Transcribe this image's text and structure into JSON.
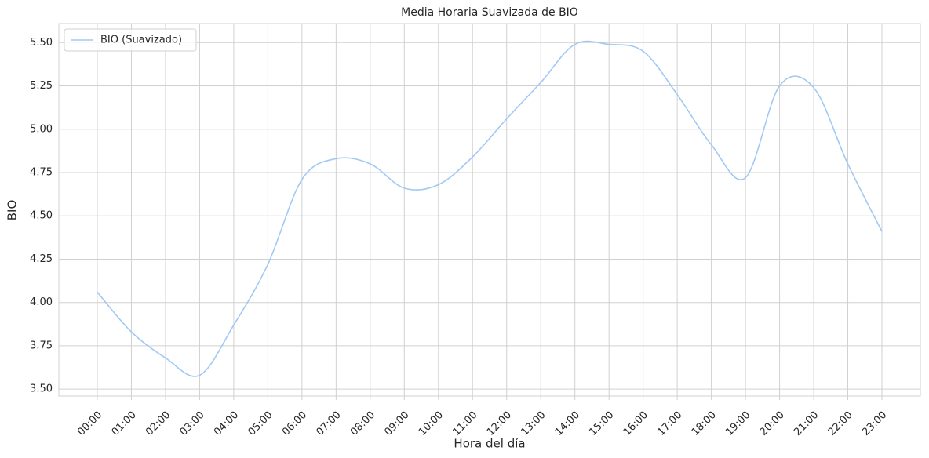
{
  "chart_data": {
    "type": "line",
    "title": "Media Horaria Suavizada de BIO",
    "x_label": "Hora del día",
    "y_label": "BIO",
    "categories": [
      "00:00",
      "01:00",
      "02:00",
      "03:00",
      "04:00",
      "05:00",
      "06:00",
      "07:00",
      "08:00",
      "09:00",
      "10:00",
      "11:00",
      "12:00",
      "13:00",
      "14:00",
      "15:00",
      "16:00",
      "17:00",
      "18:00",
      "19:00",
      "20:00",
      "21:00",
      "22:00",
      "23:00"
    ],
    "series": [
      {
        "name": "BIO (Suavizado)",
        "color": "#a1c9f4",
        "values": [
          4.06,
          3.83,
          3.68,
          3.58,
          3.87,
          4.22,
          4.71,
          4.83,
          4.8,
          4.66,
          4.68,
          4.84,
          5.06,
          5.27,
          5.49,
          5.49,
          5.45,
          5.2,
          4.91,
          4.72,
          5.25,
          5.24,
          4.8,
          4.41
        ]
      }
    ],
    "ylim": [
      3.46,
      5.61
    ],
    "yticks": [
      {
        "value": 3.5,
        "label": "3.50"
      },
      3.75,
      {
        "value": 4,
        "label": "4.00"
      },
      4.25,
      {
        "value": 4.5,
        "label": "4.50"
      },
      4.75,
      {
        "value": 5,
        "label": "5.00"
      },
      5.25,
      {
        "value": 5.5,
        "label": "5.50"
      }
    ],
    "grid": true,
    "legend": "upper left"
  }
}
